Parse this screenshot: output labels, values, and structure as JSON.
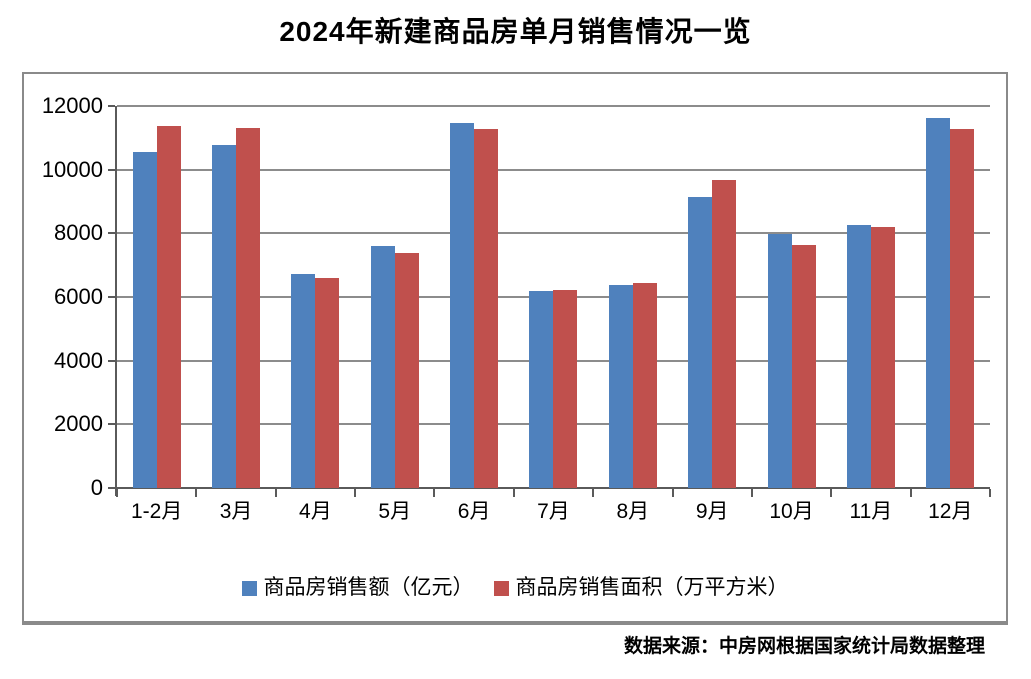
{
  "title": "2024年新建商品房单月销售情况一览",
  "footer": "数据来源：中房网根据国家统计局数据整理",
  "title_color": "#000000",
  "chart_data": {
    "type": "bar",
    "title": "2024年新建商品房单月销售情况一览",
    "categories": [
      "1-2月",
      "3月",
      "4月",
      "5月",
      "6月",
      "7月",
      "8月",
      "9月",
      "10月",
      "11月",
      "12月"
    ],
    "series": [
      {
        "name": "商品房销售额（亿元）",
        "color": "#4F81BD",
        "values": [
          10566,
          10789,
          6712,
          7598,
          11468,
          6197,
          6393,
          9157,
          7975,
          8270,
          11625
        ]
      },
      {
        "name": "商品房销售面积（万平方米）",
        "color": "#C0504D",
        "values": [
          11369,
          11299,
          6584,
          7390,
          11274,
          6233,
          6453,
          9682,
          7646,
          8188,
          11267
        ]
      }
    ],
    "xlabel": "",
    "ylabel": "",
    "ylim": [
      0,
      12000
    ],
    "yticks": [
      0,
      2000,
      4000,
      6000,
      8000,
      10000,
      12000
    ],
    "grid": true,
    "gridline_color": "#8c8c8c",
    "legend_position": "bottom",
    "source_note": "数据来源：中房网根据国家统计局数据整理"
  }
}
